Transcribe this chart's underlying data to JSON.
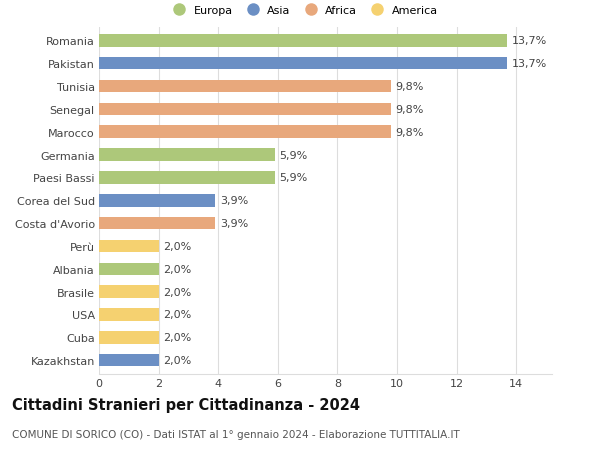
{
  "categories": [
    "Romania",
    "Pakistan",
    "Tunisia",
    "Senegal",
    "Marocco",
    "Germania",
    "Paesi Bassi",
    "Corea del Sud",
    "Costa d'Avorio",
    "Perù",
    "Albania",
    "Brasile",
    "USA",
    "Cuba",
    "Kazakhstan"
  ],
  "values": [
    13.7,
    13.7,
    9.8,
    9.8,
    9.8,
    5.9,
    5.9,
    3.9,
    3.9,
    2.0,
    2.0,
    2.0,
    2.0,
    2.0,
    2.0
  ],
  "labels": [
    "13,7%",
    "13,7%",
    "9,8%",
    "9,8%",
    "9,8%",
    "5,9%",
    "5,9%",
    "3,9%",
    "3,9%",
    "2,0%",
    "2,0%",
    "2,0%",
    "2,0%",
    "2,0%",
    "2,0%"
  ],
  "regions": [
    "Europa",
    "Asia",
    "Africa",
    "Africa",
    "Africa",
    "Europa",
    "Europa",
    "Asia",
    "Africa",
    "America",
    "Europa",
    "America",
    "America",
    "America",
    "Asia"
  ],
  "region_colors": {
    "Europa": "#adc87a",
    "Asia": "#6b8fc4",
    "Africa": "#e8a87c",
    "America": "#f5d170"
  },
  "legend_order": [
    "Europa",
    "Asia",
    "Africa",
    "America"
  ],
  "title": "Cittadini Stranieri per Cittadinanza - 2024",
  "subtitle": "COMUNE DI SORICO (CO) - Dati ISTAT al 1° gennaio 2024 - Elaborazione TUTTITALIA.IT",
  "xlim": [
    0,
    15.2
  ],
  "xticks": [
    0,
    2,
    4,
    6,
    8,
    10,
    12,
    14
  ],
  "background_color": "#ffffff",
  "grid_color": "#dddddd",
  "bar_height": 0.55,
  "label_fontsize": 8,
  "tick_fontsize": 8,
  "title_fontsize": 10.5,
  "subtitle_fontsize": 7.5
}
